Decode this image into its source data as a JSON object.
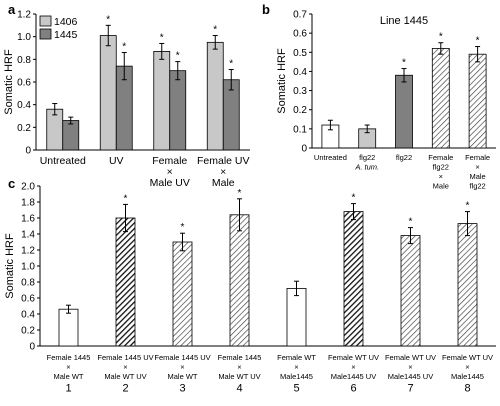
{
  "chart_data": [
    {
      "panel": "a",
      "type": "bar",
      "ylabel": "Somatic HRF",
      "ylim": [
        0,
        1.2
      ],
      "yticks": [
        "0",
        "0.2",
        "0.4",
        "0.6",
        "0.8",
        "1.0",
        "1.2"
      ],
      "categories": [
        {
          "lines": [
            "Untreated"
          ]
        },
        {
          "lines": [
            "UV"
          ]
        },
        {
          "lines": [
            "Female",
            "×",
            "Male UV"
          ]
        },
        {
          "lines": [
            "Female UV",
            "×",
            "Male"
          ]
        }
      ],
      "series": [
        {
          "name": "1406",
          "color": "#c8c8c8",
          "values": [
            0.36,
            1.01,
            0.87,
            0.95
          ],
          "errors": [
            0.05,
            0.09,
            0.07,
            0.06
          ],
          "stars": [
            false,
            true,
            true,
            true
          ]
        },
        {
          "name": "1445",
          "color": "#808080",
          "values": [
            0.26,
            0.74,
            0.7,
            0.62
          ],
          "errors": [
            0.03,
            0.12,
            0.08,
            0.09
          ],
          "stars": [
            false,
            true,
            true,
            true
          ]
        }
      ],
      "legend": "top-left"
    },
    {
      "panel": "b",
      "type": "bar",
      "title": "Line 1445",
      "ylabel": "Somatic HRF",
      "ylim": [
        0,
        0.7
      ],
      "yticks": [
        "0",
        "0.1",
        "0.2",
        "0.3",
        "0.4",
        "0.5",
        "0.6",
        "0.7"
      ],
      "bars": [
        {
          "lines": [
            "Untreated"
          ],
          "value": 0.12,
          "error": 0.025,
          "fill": "white",
          "star": false
        },
        {
          "lines": [
            "flg22",
            "A. tum."
          ],
          "value": 0.1,
          "error": 0.02,
          "fill": "light",
          "star": false
        },
        {
          "lines": [
            "flg22"
          ],
          "value": 0.38,
          "error": 0.035,
          "fill": "dark",
          "star": true
        },
        {
          "lines": [
            "Female",
            "flg22",
            "×",
            "Male"
          ],
          "value": 0.52,
          "error": 0.03,
          "fill": "hatch",
          "star": true
        },
        {
          "lines": [
            "Female",
            "×",
            "Male",
            "flg22"
          ],
          "value": 0.49,
          "error": 0.04,
          "fill": "hatch",
          "star": true
        }
      ]
    },
    {
      "panel": "c",
      "type": "bar",
      "ylabel": "Somatic HRF",
      "ylim": [
        0,
        2.0
      ],
      "yticks": [
        "0",
        "0.2",
        "0.4",
        "0.6",
        "0.8",
        "1.0",
        "1.2",
        "1.4",
        "1.6",
        "1.8",
        "2.0"
      ],
      "bars": [
        {
          "lines": [
            "Female 1445",
            "×",
            "Male WT"
          ],
          "number": "1",
          "value": 0.46,
          "error": 0.05,
          "fill": "white",
          "star": false
        },
        {
          "lines": [
            "Female 1445 UV",
            "×",
            "Male WT UV"
          ],
          "number": "2",
          "value": 1.6,
          "error": 0.17,
          "fill": "heavy",
          "star": true
        },
        {
          "lines": [
            "Female 1445 UV",
            "×",
            "Male WT"
          ],
          "number": "3",
          "value": 1.3,
          "error": 0.11,
          "fill": "hatch",
          "star": true
        },
        {
          "lines": [
            "Female 1445",
            "×",
            "Male WT UV"
          ],
          "number": "4",
          "value": 1.64,
          "error": 0.2,
          "fill": "hatch",
          "star": true
        },
        {
          "lines": [
            "Female WT",
            "×",
            "Male1445"
          ],
          "number": "5",
          "value": 0.72,
          "error": 0.09,
          "fill": "white",
          "star": false
        },
        {
          "lines": [
            "Female WT UV",
            "×",
            "Male1445 UV"
          ],
          "number": "6",
          "value": 1.68,
          "error": 0.1,
          "fill": "heavy",
          "star": true
        },
        {
          "lines": [
            "Female WT UV",
            "×",
            "Male1445 UV"
          ],
          "number": "7",
          "value": 1.38,
          "error": 0.1,
          "fill": "hatch",
          "star": true
        },
        {
          "lines": [
            "Female WT UV",
            "×",
            "Male1445"
          ],
          "number": "8",
          "value": 1.53,
          "error": 0.15,
          "fill": "hatch",
          "star": true
        }
      ]
    }
  ]
}
